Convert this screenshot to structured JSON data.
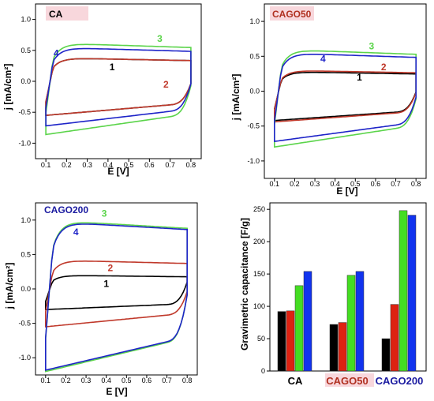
{
  "colors": {
    "black": "#000000",
    "red": "#c0392b",
    "green": "#5bd44a",
    "blue": "#1e24c8",
    "label_bg": "#f8d7dc",
    "red_text": "#b03020",
    "blue_text": "#1a1aa0"
  },
  "chart_data": [
    {
      "type": "line",
      "panel_label": "CA",
      "panel_label_color": "#000000",
      "xlabel": "E [V]",
      "ylabel": "j [mA/cm²]",
      "xlim": [
        0.05,
        0.85
      ],
      "ylim": [
        -1.25,
        1.25
      ],
      "xticks": [
        "0.1",
        "0.2",
        "0.3",
        "0.4",
        "0.5",
        "0.6",
        "0.7",
        "0.8"
      ],
      "yticks": [
        "-1.0",
        "-0.5",
        "0.0",
        "0.5",
        "1.0"
      ],
      "series": [
        {
          "name": "1",
          "label": "1",
          "color": "#000000",
          "upper": 0.38,
          "lower": -0.55,
          "sat": 0.35
        },
        {
          "name": "2",
          "label": "2",
          "color": "#c0392b",
          "upper": 0.38,
          "lower": -0.55,
          "sat": 0.35
        },
        {
          "name": "3",
          "label": "3",
          "color": "#5bd44a",
          "upper": 0.62,
          "lower": -0.86,
          "sat": 0.5
        },
        {
          "name": "4",
          "label": "4",
          "color": "#1e24c8",
          "upper": 0.55,
          "lower": -0.72,
          "sat": 0.45
        }
      ],
      "labels": [
        {
          "text": "1",
          "x": 0.42,
          "y": 0.18,
          "color": "#000000"
        },
        {
          "text": "2",
          "x": 0.68,
          "y": -0.1,
          "color": "#c0392b"
        },
        {
          "text": "3",
          "x": 0.65,
          "y": 0.64,
          "color": "#5bd44a"
        },
        {
          "text": "4",
          "x": 0.15,
          "y": 0.4,
          "color": "#1e24c8"
        }
      ]
    },
    {
      "type": "line",
      "panel_label": "CAGO50",
      "panel_label_color": "#b03020",
      "xlabel": "E [V]",
      "ylabel": "j [mA/cm²]",
      "xlim": [
        0.05,
        0.85
      ],
      "ylim": [
        -1.25,
        1.25
      ],
      "xticks": [
        "0.1",
        "0.2",
        "0.3",
        "0.4",
        "0.5",
        "0.6",
        "0.7",
        "0.8"
      ],
      "yticks": [
        "-1.0",
        "-0.5",
        "0.0",
        "0.5",
        "1.0"
      ],
      "series": [
        {
          "name": "1",
          "label": "1",
          "color": "#000000",
          "upper": 0.28,
          "lower": -0.42,
          "sat": 0.3
        },
        {
          "name": "2",
          "label": "2",
          "color": "#c0392b",
          "upper": 0.3,
          "lower": -0.44,
          "sat": 0.3
        },
        {
          "name": "3",
          "label": "3",
          "color": "#5bd44a",
          "upper": 0.6,
          "lower": -0.8,
          "sat": 0.42
        },
        {
          "name": "4",
          "label": "4",
          "color": "#1e24c8",
          "upper": 0.55,
          "lower": -0.72,
          "sat": 0.4
        }
      ],
      "labels": [
        {
          "text": "1",
          "x": 0.52,
          "y": 0.15,
          "color": "#000000"
        },
        {
          "text": "2",
          "x": 0.64,
          "y": 0.3,
          "color": "#c0392b"
        },
        {
          "text": "3",
          "x": 0.58,
          "y": 0.6,
          "color": "#5bd44a"
        },
        {
          "text": "4",
          "x": 0.34,
          "y": 0.42,
          "color": "#1e24c8"
        }
      ]
    },
    {
      "type": "line",
      "panel_label": "CAGO200",
      "panel_label_color": "#1a1aa0",
      "xlabel": "E [V]",
      "ylabel": "j [mA/cm²]",
      "xlim": [
        0.05,
        0.85
      ],
      "ylim": [
        -1.25,
        1.25
      ],
      "xticks": [
        "0.1",
        "0.2",
        "0.3",
        "0.4",
        "0.5",
        "0.6",
        "0.7",
        "0.8"
      ],
      "yticks": [
        "-1.0",
        "-0.5",
        "0.0",
        "0.5",
        "1.0"
      ],
      "series": [
        {
          "name": "1",
          "label": "1",
          "color": "#000000",
          "upper": 0.2,
          "lower": -0.3,
          "sat": 0.35
        },
        {
          "name": "2",
          "label": "2",
          "color": "#c0392b",
          "upper": 0.42,
          "lower": -0.55,
          "sat": 0.35
        },
        {
          "name": "3",
          "label": "3",
          "color": "#5bd44a",
          "upper": 1.0,
          "lower": -1.2,
          "sat": 0.7
        },
        {
          "name": "4",
          "label": "4",
          "color": "#1e24c8",
          "upper": 0.98,
          "lower": -1.18,
          "sat": 0.68
        }
      ],
      "labels": [
        {
          "text": "1",
          "x": 0.4,
          "y": 0.03,
          "color": "#000000"
        },
        {
          "text": "2",
          "x": 0.42,
          "y": 0.26,
          "color": "#c0392b"
        },
        {
          "text": "3",
          "x": 0.39,
          "y": 1.05,
          "color": "#5bd44a"
        },
        {
          "text": "4",
          "x": 0.25,
          "y": 0.78,
          "color": "#1e24c8"
        }
      ]
    },
    {
      "type": "bar",
      "ylabel": "Gravimetric capacitance [F/g]",
      "ylim": [
        0,
        260
      ],
      "yticks": [
        "0",
        "50",
        "100",
        "150",
        "200",
        "250"
      ],
      "categories": [
        "CA",
        "CAGO50",
        "CAGO200"
      ],
      "category_colors": [
        "#000000",
        "#b03020",
        "#1a1aa0"
      ],
      "series": [
        {
          "name": "1",
          "color": "#000000",
          "values": [
            92,
            72,
            50
          ]
        },
        {
          "name": "2",
          "color": "#dd2211",
          "values": [
            93,
            75,
            103
          ]
        },
        {
          "name": "3",
          "color": "#44dd22",
          "values": [
            132,
            148,
            248
          ]
        },
        {
          "name": "4",
          "color": "#1133ee",
          "values": [
            154,
            154,
            241
          ]
        }
      ]
    }
  ]
}
